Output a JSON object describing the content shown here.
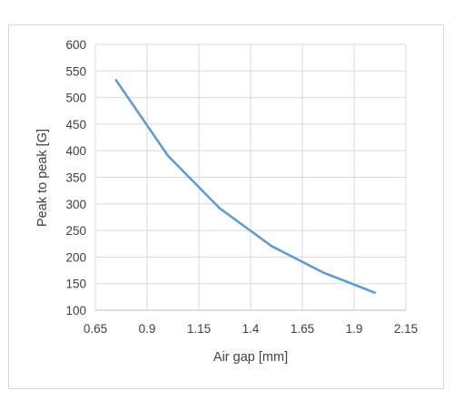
{
  "chart_data": {
    "type": "line",
    "title": "",
    "xlabel": "Air gap [mm]",
    "ylabel": "Peak to peak [G]",
    "xlim": [
      0.65,
      2.15
    ],
    "ylim": [
      100,
      600
    ],
    "x_ticks": [
      "0.65",
      "0.9",
      "1.15",
      "1.4",
      "1.65",
      "1.9",
      "2.15"
    ],
    "y_ticks": [
      "100",
      "150",
      "200",
      "250",
      "300",
      "350",
      "400",
      "450",
      "500",
      "550",
      "600"
    ],
    "grid": true,
    "legend": "none",
    "series": [
      {
        "color": "#5b9bd5",
        "x": [
          0.75,
          1.0,
          1.25,
          1.5,
          1.75,
          2.0
        ],
        "y": [
          533,
          391,
          292,
          221,
          171,
          133
        ]
      }
    ]
  }
}
